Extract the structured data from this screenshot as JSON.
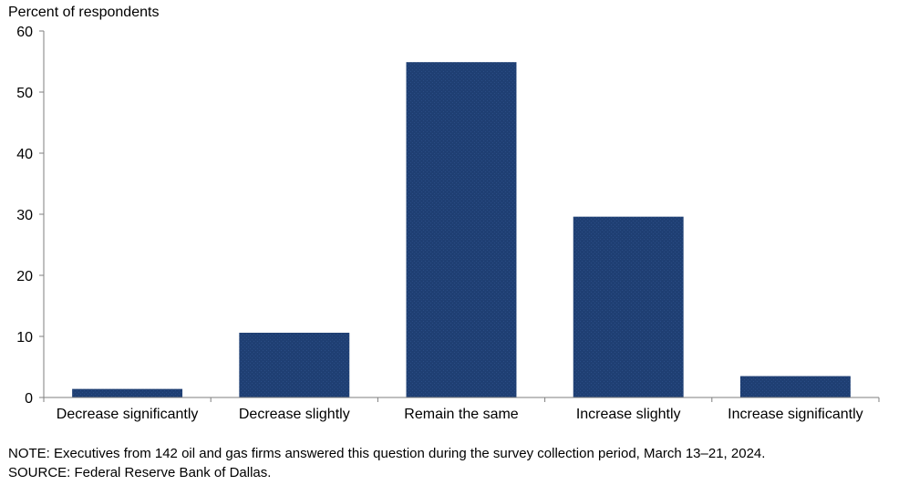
{
  "chart_data": {
    "type": "bar",
    "ylabel": "Percent of respondents",
    "xlabel": "",
    "categories": [
      "Decrease significantly",
      "Decrease slightly",
      "Remain the same",
      "Increase slightly",
      "Increase significantly"
    ],
    "values": [
      1.4,
      10.6,
      54.9,
      29.6,
      3.5
    ],
    "ylim": [
      0,
      60
    ],
    "yticks": [
      0,
      10,
      20,
      30,
      40,
      50,
      60
    ],
    "bar_color": "#1f3f73",
    "grid": false
  },
  "footnotes": {
    "note": "NOTE:  Executives  from  142  oil  and  gas  firms  answered  this  question  during  the  survey  collection  period,  March  13–21,  2024.",
    "source": "SOURCE:  Federal  Reserve  Bank  of  Dallas."
  }
}
